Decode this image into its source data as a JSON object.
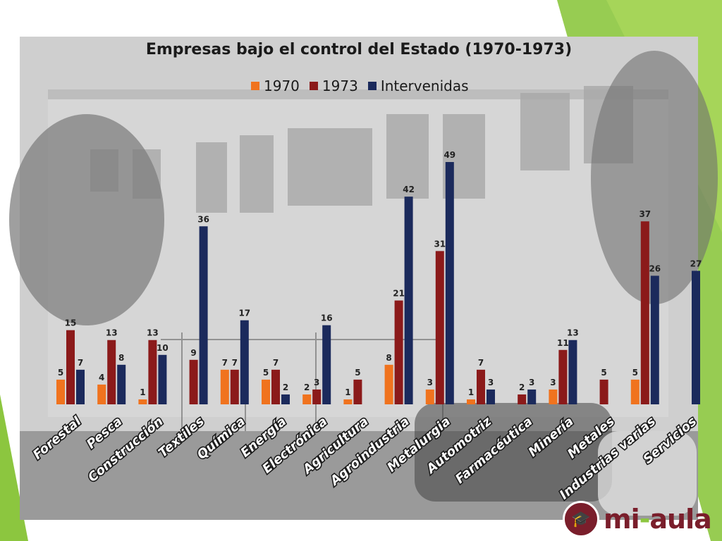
{
  "slide": {
    "logo": {
      "text_mi": "mi",
      "text_aula": "aula",
      "icon": "graduation-cap-icon",
      "color": "#7a1e2b",
      "accent": "#8cc63f"
    },
    "deco_color": "#8cc63f"
  },
  "chart_data": {
    "type": "bar",
    "title": "Empresas bajo el control del Estado (1970-1973)",
    "xlabel": "",
    "ylabel": "",
    "ylim": [
      0,
      52
    ],
    "grid": false,
    "legend_position": "top",
    "categories": [
      "Forestal",
      "Pesca",
      "Construcción",
      "Textiles",
      "Química",
      "Energía",
      "Electrónica",
      "Agricultura",
      "Agroindustria",
      "Metalurgia",
      "Automotriz",
      "Farmacéutica",
      "Minería",
      "Metales",
      "Industrias varias",
      "Servicios"
    ],
    "series": [
      {
        "name": "1970",
        "color": "#f0731e",
        "values": [
          5,
          4,
          1,
          null,
          7,
          5,
          2,
          1,
          8,
          3,
          1,
          null,
          3,
          null,
          5,
          null
        ]
      },
      {
        "name": "1973",
        "color": "#8b1a1a",
        "values": [
          15,
          13,
          13,
          9,
          7,
          7,
          3,
          5,
          21,
          31,
          7,
          2,
          11,
          5,
          37,
          null
        ]
      },
      {
        "name": "Intervenidas",
        "color": "#1b2a5c",
        "values": [
          7,
          8,
          10,
          36,
          17,
          2,
          16,
          null,
          42,
          49,
          3,
          3,
          13,
          null,
          26,
          27
        ]
      }
    ]
  }
}
